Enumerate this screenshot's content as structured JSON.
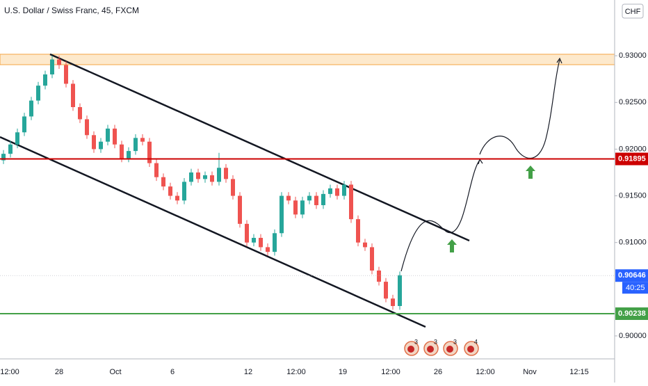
{
  "chart_data": {
    "type": "candlestick",
    "title": "U.S. Dollar / Swiss Franc, 45, FXCM",
    "currency": "CHF",
    "up_color": "#26a69a",
    "down_color": "#ef5350",
    "open": [
      0.9188,
      0.9195,
      0.9205,
      0.9218,
      0.9235,
      0.9252,
      0.9268,
      0.928,
      0.9296,
      0.929,
      0.927,
      0.9245,
      0.9232,
      0.9215,
      0.92,
      0.9208,
      0.9222,
      0.9205,
      0.919,
      0.9198,
      0.9212,
      0.9208,
      0.9185,
      0.917,
      0.916,
      0.915,
      0.9145,
      0.9165,
      0.9175,
      0.9168,
      0.9172,
      0.9165,
      0.918,
      0.9168,
      0.915,
      0.912,
      0.91,
      0.9105,
      0.9095,
      0.909,
      0.911,
      0.915,
      0.9145,
      0.913,
      0.9145,
      0.915,
      0.914,
      0.9152,
      0.9158,
      0.915,
      0.9162,
      0.9125,
      0.91,
      0.9095,
      0.907,
      0.9058,
      0.904,
      0.9032
    ],
    "high": [
      0.9199,
      0.9209,
      0.9222,
      0.9239,
      0.9256,
      0.9272,
      0.9284,
      0.93,
      0.93,
      0.9294,
      0.9274,
      0.9249,
      0.9236,
      0.9219,
      0.9212,
      0.9226,
      0.9226,
      0.9209,
      0.9202,
      0.9216,
      0.9216,
      0.9212,
      0.9189,
      0.9174,
      0.9164,
      0.9154,
      0.9169,
      0.9179,
      0.9179,
      0.9176,
      0.9176,
      0.9196,
      0.9184,
      0.9172,
      0.9154,
      0.9124,
      0.9109,
      0.9109,
      0.9099,
      0.9114,
      0.9154,
      0.9154,
      0.9149,
      0.9149,
      0.9154,
      0.9154,
      0.9156,
      0.9162,
      0.9162,
      0.9166,
      0.9166,
      0.9129,
      0.9104,
      0.9099,
      0.9074,
      0.9062,
      0.9044,
      0.9069
    ],
    "low": [
      0.9184,
      0.9191,
      0.9201,
      0.9214,
      0.9231,
      0.9248,
      0.9264,
      0.9276,
      0.9286,
      0.9266,
      0.9241,
      0.9228,
      0.9211,
      0.9196,
      0.9196,
      0.9204,
      0.9201,
      0.9186,
      0.9186,
      0.9194,
      0.9204,
      0.9181,
      0.9166,
      0.9156,
      0.9146,
      0.9141,
      0.9141,
      0.9161,
      0.9164,
      0.9164,
      0.9161,
      0.9161,
      0.9164,
      0.9146,
      0.9116,
      0.9096,
      0.9096,
      0.9091,
      0.9086,
      0.9086,
      0.9106,
      0.9141,
      0.9126,
      0.9126,
      0.9141,
      0.9136,
      0.9136,
      0.9148,
      0.9146,
      0.9146,
      0.9121,
      0.9096,
      0.9091,
      0.9066,
      0.9054,
      0.9036,
      0.9028,
      0.9028
    ],
    "close": [
      0.9195,
      0.9205,
      0.9218,
      0.9235,
      0.9252,
      0.9268,
      0.928,
      0.9296,
      0.929,
      0.927,
      0.9245,
      0.9232,
      0.9215,
      0.92,
      0.9208,
      0.9222,
      0.9205,
      0.919,
      0.9198,
      0.9212,
      0.9208,
      0.9185,
      0.917,
      0.916,
      0.915,
      0.9145,
      0.9165,
      0.9175,
      0.9168,
      0.9172,
      0.9165,
      0.918,
      0.9168,
      0.915,
      0.912,
      0.91,
      0.9105,
      0.9095,
      0.909,
      0.911,
      0.915,
      0.9145,
      0.913,
      0.9145,
      0.915,
      0.914,
      0.9152,
      0.9158,
      0.915,
      0.9162,
      0.9125,
      0.91,
      0.9095,
      0.907,
      0.9058,
      0.904,
      0.9032,
      0.9065
    ],
    "ylim": [
      0.89754,
      0.93597
    ],
    "yticks": [
      {
        "value": 0.9,
        "label": "0.90000"
      },
      {
        "value": 0.91,
        "label": "0.91000"
      },
      {
        "value": 0.915,
        "label": "0.91500"
      },
      {
        "value": 0.92,
        "label": "0.92000"
      },
      {
        "value": 0.925,
        "label": "0.92500"
      },
      {
        "value": 0.93,
        "label": "0.93000"
      }
    ],
    "xlabels": [
      "12:00",
      "28",
      "Oct",
      "6",
      "12",
      "12:00",
      "19",
      "12:00",
      "26",
      "12:00",
      "Nov",
      "12:15"
    ],
    "price_labels": [
      {
        "value": 0.91895,
        "label": "0.91895",
        "color": "#cc0000",
        "style": "solid"
      },
      {
        "value": 0.90646,
        "label": "0.90646",
        "color": "#2962ff",
        "style": "dotted"
      },
      {
        "value": 0.90238,
        "label": "0.90238",
        "color": "#43a047",
        "style": "solid"
      }
    ],
    "countdown": "40:25",
    "events": [
      "3",
      "3",
      "3",
      "4"
    ]
  }
}
